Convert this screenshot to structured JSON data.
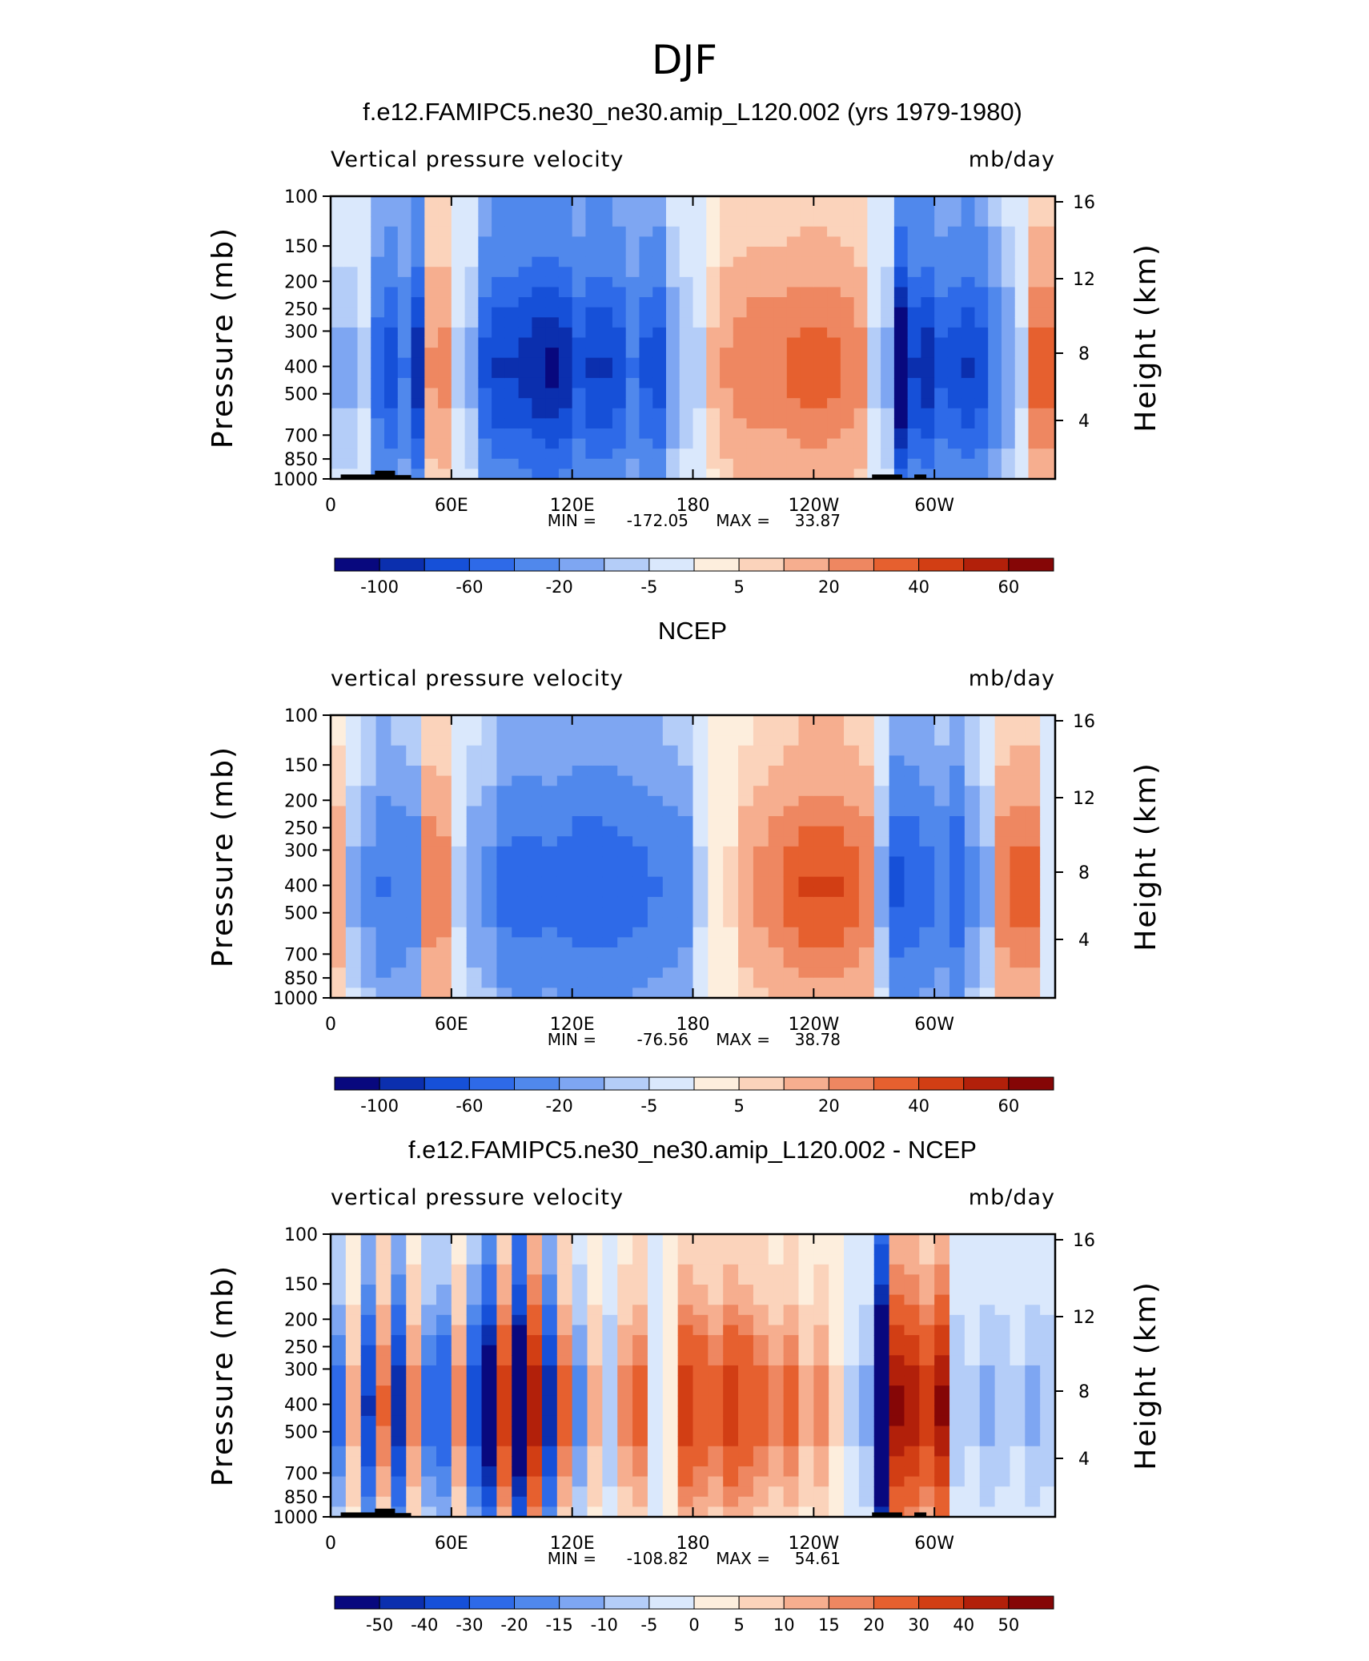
{
  "chart_data": {
    "type": "heatmap",
    "title": "DJF",
    "colors": {
      "negative": [
        "#08087e",
        "#0b2fae",
        "#1650d8",
        "#2e6ae8",
        "#5088ec",
        "#7ea6f2",
        "#b4cdf8",
        "#dae8fc"
      ],
      "positive": [
        "#fdeedd",
        "#fbd3bb",
        "#f6ae8f",
        "#ee8761",
        "#e6602f",
        "#d23e14",
        "#b2200a",
        "#850606"
      ],
      "topography": "#000000"
    },
    "panels": [
      {
        "title": "f.e12.FAMIPC5.ne30_ne30.amip_L120.002 (yrs 1979-1980)",
        "left_label": "Vertical pressure velocity",
        "right_label": "mb/day",
        "ylabel": "Pressure (mb)",
        "y2label": "Height (km)",
        "pressure_ticks": [
          "100",
          "150",
          "200",
          "250",
          "300",
          "400",
          "500",
          "700",
          "850",
          "1000"
        ],
        "height_ticks": [
          "16",
          "12",
          "8",
          "4"
        ],
        "xticks": [
          "0",
          "60E",
          "120E",
          "180",
          "120W",
          "60W"
        ],
        "xlim": [
          0,
          360
        ],
        "min": "-172.05",
        "max": "33.87",
        "min_label": "MIN =",
        "max_label": "MAX =",
        "colorbar_labels": [
          "-100",
          "-60",
          "-20",
          "-5",
          "5",
          "20",
          "40",
          "60"
        ],
        "cells": [
          [
            1,
            2,
            3,
            5,
            5,
            3,
            2,
            2,
            2,
            3,
            3,
            3,
            3,
            3,
            3,
            5,
            5,
            5,
            3,
            3,
            4,
            4,
            4,
            4,
            4,
            5,
            5,
            6,
            6,
            6,
            6,
            6,
            6,
            5,
            5,
            5,
            6,
            6,
            6,
            4,
            4,
            3,
            3,
            4,
            4,
            5,
            5,
            5,
            4,
            3,
            3,
            4,
            5,
            5
          ],
          [
            1,
            2,
            3,
            5,
            5,
            3,
            2,
            2,
            2,
            3,
            3,
            3,
            3,
            3,
            3,
            5,
            5,
            5,
            3,
            3,
            4,
            4,
            4,
            4,
            4,
            5,
            5,
            6,
            6,
            6,
            6,
            6,
            6,
            5,
            5,
            5,
            6,
            6,
            6,
            4,
            4,
            3,
            3,
            4,
            4,
            5,
            5,
            5,
            4,
            3,
            3,
            4,
            5,
            5
          ],
          [
            1,
            2,
            3,
            5,
            5,
            3,
            2,
            2,
            2,
            3,
            3,
            3,
            3,
            3,
            3,
            5,
            5,
            5,
            3,
            3,
            4,
            4,
            4,
            4,
            4,
            5,
            5,
            6,
            6,
            6,
            6,
            6,
            6,
            5,
            5,
            5,
            6,
            6,
            6,
            4,
            4,
            3,
            3,
            4,
            4,
            5,
            5,
            5,
            4,
            3,
            3,
            4,
            5,
            5
          ],
          [
            1,
            2,
            3,
            5,
            5,
            3,
            2,
            2,
            2,
            3,
            3,
            3,
            3,
            3,
            3,
            5,
            5,
            5,
            3,
            3,
            4,
            4,
            4,
            4,
            4,
            5,
            5,
            6,
            6,
            6,
            6,
            6,
            6,
            5,
            5,
            5,
            6,
            6,
            6,
            4,
            4,
            3,
            3,
            4,
            4,
            5,
            5,
            5,
            4,
            3,
            3,
            4,
            5,
            5
          ],
          [
            1,
            2,
            3,
            5,
            5,
            3,
            2,
            2,
            2,
            3,
            3,
            3,
            3,
            3,
            3,
            5,
            5,
            5,
            3,
            3,
            4,
            4,
            4,
            4,
            4,
            5,
            5,
            6,
            6,
            6,
            6,
            6,
            6,
            5,
            5,
            5,
            6,
            6,
            6,
            4,
            4,
            3,
            3,
            4,
            4,
            5,
            5,
            5,
            4,
            3,
            3,
            4,
            5,
            5
          ],
          [
            1,
            2,
            3,
            5,
            5,
            3,
            2,
            2,
            2,
            3,
            3,
            3,
            3,
            3,
            3,
            5,
            5,
            5,
            3,
            3,
            4,
            4,
            4,
            4,
            4,
            5,
            5,
            6,
            6,
            6,
            6,
            6,
            6,
            5,
            5,
            5,
            6,
            6,
            6,
            4,
            4,
            3,
            3,
            4,
            4,
            5,
            5,
            5,
            4,
            3,
            3,
            4,
            5,
            5
          ],
          [
            1,
            2,
            3,
            5,
            5,
            3,
            2,
            2,
            2,
            3,
            3,
            3,
            3,
            3,
            3,
            5,
            5,
            5,
            3,
            3,
            4,
            4,
            4,
            4,
            4,
            5,
            5,
            6,
            6,
            6,
            6,
            6,
            6,
            5,
            5,
            5,
            6,
            6,
            6,
            4,
            4,
            3,
            3,
            4,
            4,
            5,
            5,
            5,
            4,
            3,
            3,
            4,
            5,
            5
          ],
          [
            1,
            2,
            3,
            5,
            5,
            3,
            2,
            2,
            2,
            3,
            3,
            3,
            3,
            3,
            3,
            5,
            5,
            5,
            3,
            3,
            4,
            4,
            4,
            4,
            4,
            5,
            5,
            6,
            6,
            6,
            6,
            6,
            6,
            5,
            5,
            5,
            6,
            6,
            6,
            4,
            4,
            3,
            3,
            4,
            4,
            5,
            5,
            5,
            4,
            3,
            3,
            4,
            5,
            5
          ],
          [
            1,
            2,
            3,
            5,
            5,
            3,
            2,
            2,
            2,
            3,
            3,
            3,
            3,
            3,
            3,
            5,
            5,
            5,
            3,
            3,
            4,
            4,
            4,
            4,
            4,
            5,
            5,
            6,
            6,
            6,
            6,
            6,
            6,
            5,
            5,
            5,
            6,
            6,
            6,
            4,
            4,
            3,
            3,
            4,
            4,
            5,
            5,
            5,
            4,
            3,
            3,
            4,
            5,
            5
          ],
          [
            1,
            2,
            3,
            5,
            5,
            3,
            2,
            2,
            2,
            3,
            3,
            3,
            3,
            3,
            3,
            5,
            5,
            5,
            3,
            3,
            4,
            4,
            4,
            4,
            4,
            5,
            5,
            6,
            6,
            6,
            6,
            6,
            6,
            5,
            5,
            5,
            6,
            6,
            6,
            4,
            4,
            3,
            3,
            4,
            4,
            5,
            5,
            5,
            4,
            3,
            3,
            4,
            5,
            5
          ],
          [
            1,
            2,
            3,
            5,
            5,
            3,
            2,
            2,
            2,
            3,
            3,
            3,
            3,
            3,
            3,
            5,
            5,
            5,
            3,
            3,
            4,
            4,
            4,
            4,
            4,
            5,
            5,
            6,
            6,
            6,
            6,
            6,
            6,
            5,
            5,
            5,
            6,
            6,
            6,
            4,
            4,
            3,
            3,
            4,
            4,
            5,
            5,
            5,
            4,
            3,
            3,
            4,
            5,
            5
          ],
          [
            1,
            2,
            3,
            5,
            5,
            3,
            2,
            2,
            2,
            3,
            3,
            3,
            3,
            3,
            3,
            5,
            5,
            5,
            3,
            3,
            4,
            4,
            4,
            4,
            4,
            5,
            5,
            6,
            6,
            6,
            6,
            6,
            6,
            5,
            5,
            5,
            6,
            6,
            6,
            4,
            4,
            3,
            3,
            4,
            4,
            5,
            5,
            5,
            4,
            3,
            3,
            4,
            5,
            5
          ],
          [
            1,
            2,
            3,
            5,
            5,
            3,
            2,
            2,
            2,
            3,
            3,
            3,
            3,
            3,
            3,
            5,
            5,
            5,
            3,
            3,
            4,
            4,
            4,
            4,
            4,
            5,
            5,
            6,
            6,
            6,
            6,
            6,
            6,
            5,
            5,
            5,
            6,
            6,
            6,
            4,
            4,
            3,
            3,
            4,
            4,
            5,
            5,
            5,
            4,
            3,
            3,
            4,
            5,
            5
          ],
          [
            1,
            2,
            3,
            5,
            5,
            3,
            2,
            2,
            2,
            3,
            3,
            3,
            3,
            3,
            3,
            5,
            5,
            5,
            3,
            3,
            4,
            4,
            4,
            4,
            4,
            5,
            5,
            6,
            6,
            6,
            6,
            6,
            6,
            5,
            5,
            5,
            6,
            6,
            6,
            4,
            4,
            3,
            3,
            4,
            4,
            5,
            5,
            5,
            4,
            3,
            3,
            4,
            5,
            5
          ]
        ]
      },
      {
        "title": "NCEP",
        "left_label": "vertical pressure velocity",
        "right_label": "mb/day",
        "ylabel": "Pressure (mb)",
        "y2label": "Height (km)",
        "pressure_ticks": [
          "100",
          "150",
          "200",
          "250",
          "300",
          "400",
          "500",
          "700",
          "850",
          "1000"
        ],
        "height_ticks": [
          "16",
          "12",
          "8",
          "4"
        ],
        "xticks": [
          "0",
          "60E",
          "120E",
          "180",
          "120W",
          "60W"
        ],
        "xlim": [
          0,
          360
        ],
        "min": "-76.56",
        "max": "38.78",
        "min_label": "MIN =",
        "max_label": "MAX =",
        "colorbar_labels": [
          "-100",
          "-60",
          "-20",
          "-5",
          "5",
          "20",
          "40",
          "60"
        ]
      },
      {
        "title": "f.e12.FAMIPC5.ne30_ne30.amip_L120.002 - NCEP",
        "left_label": "vertical pressure velocity",
        "right_label": "mb/day",
        "ylabel": "Pressure (mb)",
        "y2label": "Height (km)",
        "pressure_ticks": [
          "100",
          "150",
          "200",
          "250",
          "300",
          "400",
          "500",
          "700",
          "850",
          "1000"
        ],
        "height_ticks": [
          "16",
          "12",
          "8",
          "4"
        ],
        "xticks": [
          "0",
          "60E",
          "120E",
          "180",
          "120W",
          "60W"
        ],
        "xlim": [
          0,
          360
        ],
        "min": "-108.82",
        "max": "54.61",
        "min_label": "MIN =",
        "max_label": "MAX =",
        "colorbar_labels": [
          "-50",
          "-40",
          "-30",
          "-20",
          "-15",
          "-10",
          "-5",
          "0",
          "5",
          "10",
          "15",
          "20",
          "30",
          "40",
          "50"
        ]
      }
    ],
    "profiles": [
      [
        -10,
        -10,
        -5,
        -45,
        -60,
        -35,
        -80,
        18,
        20,
        -5,
        -10,
        -55,
        -70,
        -70,
        -75,
        -85,
        -90,
        -80,
        -55,
        -70,
        -70,
        -60,
        -35,
        -55,
        -60,
        -15,
        -8,
        -5,
        10,
        18,
        22,
        25,
        25,
        25,
        28,
        30,
        30,
        28,
        25,
        20,
        -5,
        -10,
        -120,
        -70,
        -80,
        -55,
        -60,
        -70,
        -60,
        -30,
        -15,
        -5,
        30,
        30
      ],
      [
        15,
        -10,
        -20,
        -35,
        -30,
        -25,
        25,
        22,
        -5,
        -15,
        -20,
        -40,
        -45,
        -45,
        -40,
        -45,
        -50,
        -50,
        -48,
        -45,
        -40,
        -35,
        -30,
        -25,
        -5,
        2,
        5,
        15,
        20,
        25,
        30,
        35,
        35,
        35,
        30,
        25,
        -10,
        -55,
        -50,
        -40,
        -30,
        -50,
        -20,
        -10,
        25,
        30,
        30,
        -3
      ],
      [
        -20,
        10,
        -35,
        18,
        -40,
        15,
        -20,
        -25,
        15,
        -30,
        -60,
        30,
        -70,
        40,
        -40,
        20,
        -15,
        10,
        -8,
        15,
        20,
        -3,
        2,
        30,
        25,
        20,
        30,
        25,
        20,
        15,
        20,
        10,
        15,
        5,
        -5,
        -10,
        -100,
        45,
        40,
        30,
        45,
        -8,
        -5,
        -10,
        -8,
        -5,
        -10,
        -8
      ]
    ]
  }
}
